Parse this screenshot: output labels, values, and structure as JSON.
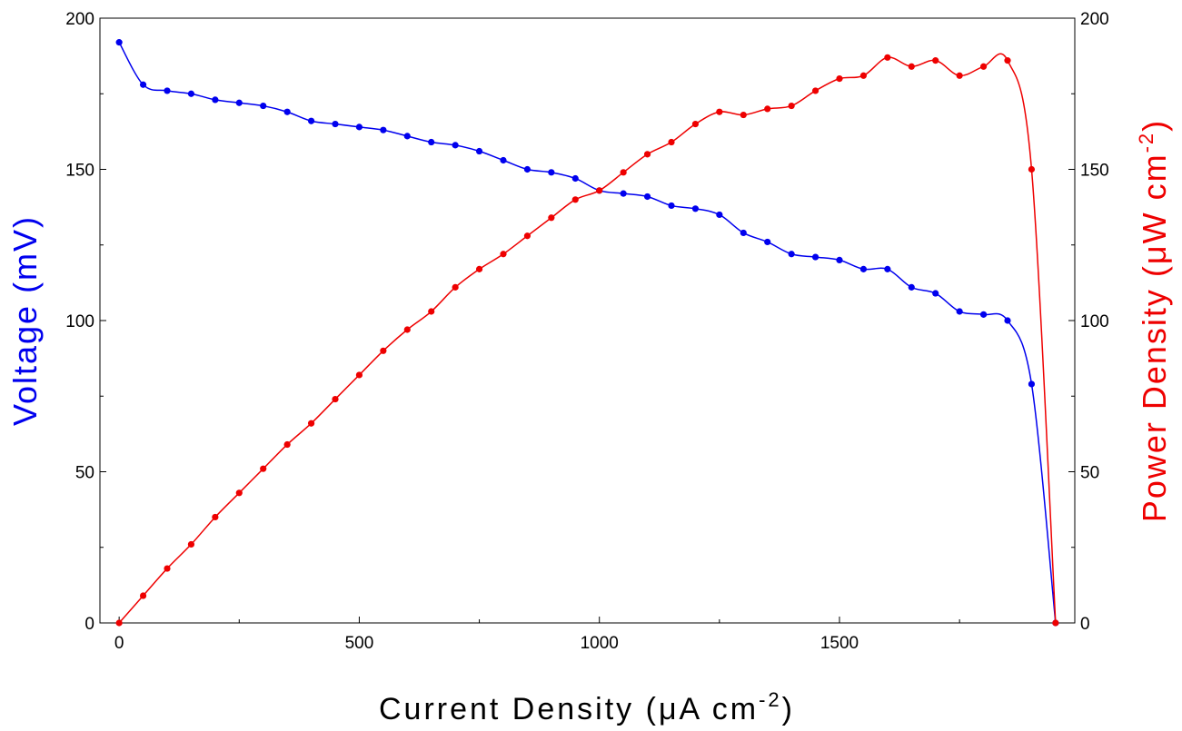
{
  "chart_data": {
    "type": "line",
    "xlabel": "Current Density (μA cm",
    "xlabel_sup": "-2",
    "xlabel_end": ")",
    "ylabel_left": "Voltage (mV)",
    "ylabel_right": "Power Density (μW cm",
    "ylabel_right_sup": "-2",
    "ylabel_right_end": ")",
    "xlim": [
      -40,
      1990
    ],
    "ylim_left": [
      0,
      200
    ],
    "ylim_right": [
      0,
      200
    ],
    "x_ticks": [
      0,
      500,
      1000,
      1500
    ],
    "y_ticks": [
      0,
      50,
      100,
      150,
      200
    ],
    "grid": false,
    "series": [
      {
        "axis": "left",
        "color": "#0000ee",
        "x": [
          0,
          50,
          100,
          150,
          200,
          250,
          300,
          350,
          400,
          450,
          500,
          550,
          600,
          650,
          700,
          750,
          800,
          850,
          900,
          950,
          1000,
          1050,
          1100,
          1150,
          1200,
          1250,
          1300,
          1350,
          1400,
          1450,
          1500,
          1550,
          1600,
          1650,
          1700,
          1750,
          1800,
          1850,
          1900,
          1950
        ],
        "values": [
          192,
          178,
          176,
          175,
          173,
          172,
          171,
          169,
          166,
          165,
          164,
          163,
          161,
          159,
          158,
          156,
          153,
          150,
          149,
          147,
          143,
          142,
          141,
          138,
          137,
          135,
          129,
          126,
          122,
          121,
          120,
          117,
          117,
          111,
          109,
          103,
          102,
          100,
          79,
          0
        ]
      },
      {
        "axis": "right",
        "color": "#ee0000",
        "x": [
          0,
          50,
          100,
          150,
          200,
          250,
          300,
          350,
          400,
          450,
          500,
          550,
          600,
          650,
          700,
          750,
          800,
          850,
          900,
          950,
          1000,
          1050,
          1100,
          1150,
          1200,
          1250,
          1300,
          1350,
          1400,
          1450,
          1500,
          1550,
          1600,
          1650,
          1700,
          1750,
          1800,
          1850,
          1900,
          1950
        ],
        "values": [
          0,
          9,
          18,
          26,
          35,
          43,
          51,
          59,
          66,
          74,
          82,
          90,
          97,
          103,
          111,
          117,
          122,
          128,
          134,
          140,
          143,
          149,
          155,
          159,
          165,
          169,
          168,
          170,
          171,
          176,
          180,
          181,
          187,
          184,
          186,
          181,
          184,
          186,
          150,
          0
        ]
      }
    ]
  }
}
